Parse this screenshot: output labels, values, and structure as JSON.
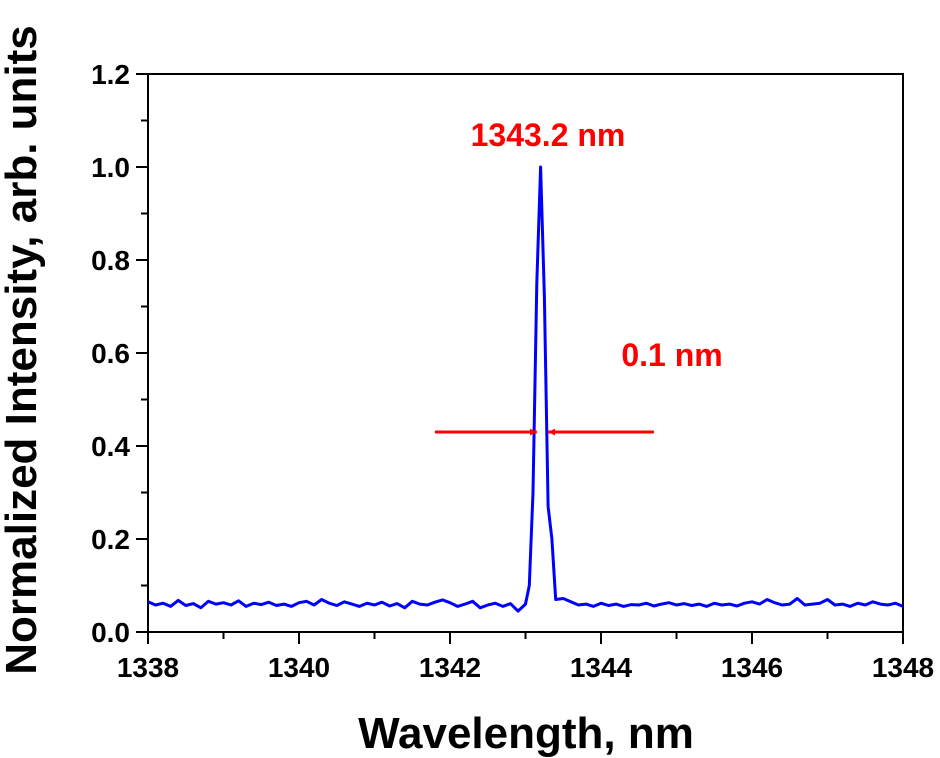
{
  "chart_data": {
    "type": "line",
    "title": "",
    "xlabel": "Wavelength, nm",
    "ylabel": "Normalized Intensity, arb. units",
    "xlim": [
      1338,
      1348
    ],
    "ylim": [
      0,
      1.2
    ],
    "x_ticks": [
      "1338",
      "1340",
      "1342",
      "1344",
      "1346",
      "1348"
    ],
    "y_ticks": [
      "0.0",
      "0.2",
      "0.4",
      "0.6",
      "0.8",
      "1.0",
      "1.2"
    ],
    "grid": false,
    "legend": "none",
    "series": [
      {
        "color": "#0000ff",
        "x": [
          1338.0,
          1338.1,
          1338.2,
          1338.3,
          1338.4,
          1338.5,
          1338.6,
          1338.7,
          1338.8,
          1338.9,
          1339.0,
          1339.1,
          1339.2,
          1339.3,
          1339.4,
          1339.5,
          1339.6,
          1339.7,
          1339.8,
          1339.9,
          1340.0,
          1340.1,
          1340.2,
          1340.3,
          1340.4,
          1340.5,
          1340.6,
          1340.7,
          1340.8,
          1340.9,
          1341.0,
          1341.1,
          1341.2,
          1341.3,
          1341.4,
          1341.5,
          1341.6,
          1341.7,
          1341.8,
          1341.9,
          1342.0,
          1342.1,
          1342.2,
          1342.3,
          1342.4,
          1342.5,
          1342.6,
          1342.7,
          1342.8,
          1342.9,
          1343.0,
          1343.05,
          1343.1,
          1343.15,
          1343.2,
          1343.25,
          1343.3,
          1343.35,
          1343.4,
          1343.5,
          1343.6,
          1343.7,
          1343.8,
          1343.9,
          1344.0,
          1344.1,
          1344.2,
          1344.3,
          1344.4,
          1344.5,
          1344.6,
          1344.7,
          1344.8,
          1344.9,
          1345.0,
          1345.1,
          1345.2,
          1345.3,
          1345.4,
          1345.5,
          1345.6,
          1345.7,
          1345.8,
          1345.9,
          1346.0,
          1346.1,
          1346.2,
          1346.3,
          1346.4,
          1346.5,
          1346.6,
          1346.7,
          1346.8,
          1346.9,
          1347.0,
          1347.1,
          1347.2,
          1347.3,
          1347.4,
          1347.5,
          1347.6,
          1347.7,
          1347.8,
          1347.9,
          1348.0
        ],
        "values": [
          0.065,
          0.058,
          0.062,
          0.055,
          0.068,
          0.057,
          0.061,
          0.052,
          0.066,
          0.06,
          0.063,
          0.058,
          0.067,
          0.055,
          0.062,
          0.059,
          0.064,
          0.057,
          0.06,
          0.055,
          0.063,
          0.066,
          0.058,
          0.07,
          0.062,
          0.057,
          0.065,
          0.06,
          0.055,
          0.062,
          0.058,
          0.064,
          0.056,
          0.061,
          0.052,
          0.066,
          0.06,
          0.058,
          0.064,
          0.069,
          0.063,
          0.055,
          0.06,
          0.066,
          0.052,
          0.058,
          0.062,
          0.055,
          0.061,
          0.045,
          0.06,
          0.1,
          0.3,
          0.75,
          1.0,
          0.72,
          0.27,
          0.2,
          0.07,
          0.072,
          0.065,
          0.058,
          0.06,
          0.055,
          0.062,
          0.057,
          0.06,
          0.055,
          0.059,
          0.058,
          0.062,
          0.056,
          0.06,
          0.063,
          0.058,
          0.061,
          0.057,
          0.06,
          0.055,
          0.062,
          0.058,
          0.06,
          0.056,
          0.062,
          0.065,
          0.06,
          0.07,
          0.063,
          0.058,
          0.06,
          0.072,
          0.058,
          0.06,
          0.062,
          0.07,
          0.058,
          0.06,
          0.055,
          0.062,
          0.058,
          0.065,
          0.06,
          0.058,
          0.062,
          0.055
        ]
      }
    ],
    "annotations": [
      {
        "text": "1343.2 nm",
        "color": "#ff0000"
      },
      {
        "text": "0.1 nm",
        "color": "#ff0000"
      }
    ],
    "fwhm_arrows": {
      "y": 0.43,
      "left_from": 1341.8,
      "left_to": 1343.15,
      "right_from": 1344.7,
      "right_to": 1343.3,
      "color": "#ff0000"
    }
  }
}
